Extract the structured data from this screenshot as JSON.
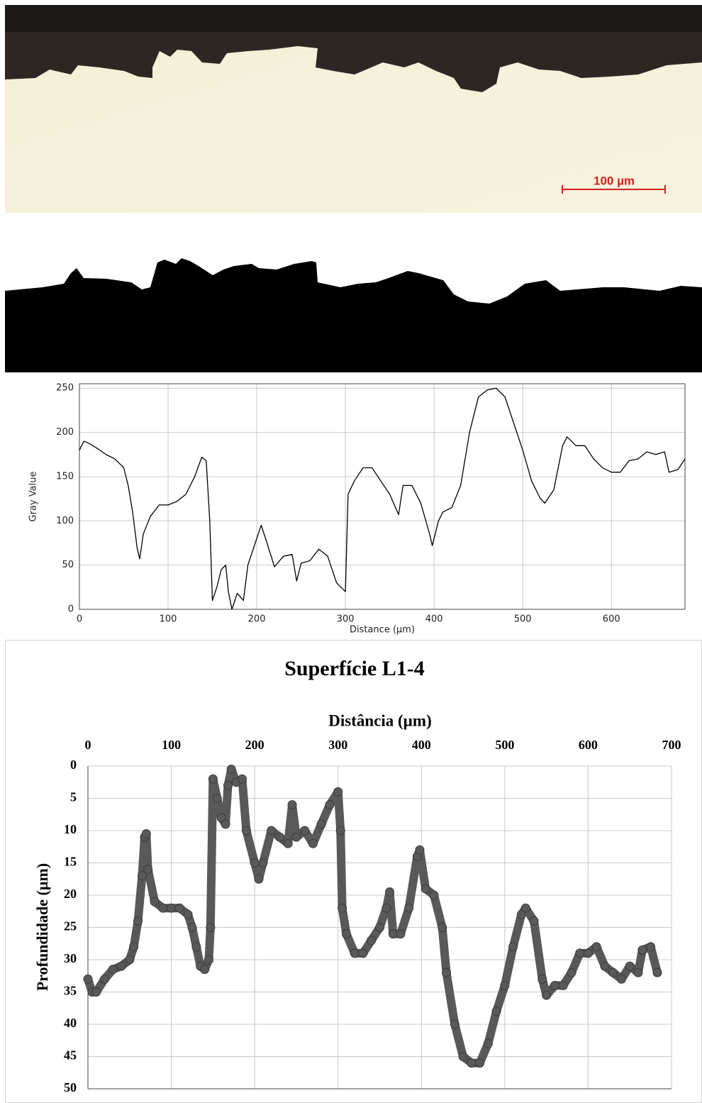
{
  "micrograph": {
    "scale_label": "100 µm"
  },
  "chart_data": [
    {
      "type": "line",
      "x_label": "Distance (µm)",
      "y_label": "Gray Value",
      "color": "#000000",
      "grid": true,
      "xlim": [
        0,
        683
      ],
      "xticks": [
        0,
        100,
        200,
        300,
        400,
        500,
        600
      ],
      "ylim": [
        0,
        255
      ],
      "yticks": [
        0,
        50,
        100,
        150,
        200,
        250
      ],
      "x": [
        0,
        5,
        10,
        20,
        30,
        40,
        50,
        55,
        60,
        65,
        68,
        72,
        80,
        90,
        100,
        110,
        120,
        130,
        138,
        143,
        147,
        150,
        155,
        160,
        165,
        168,
        172,
        178,
        185,
        190,
        200,
        205,
        210,
        220,
        230,
        240,
        245,
        250,
        260,
        270,
        280,
        290,
        300,
        303,
        310,
        320,
        330,
        340,
        350,
        360,
        365,
        375,
        385,
        395,
        398,
        405,
        410,
        420,
        430,
        440,
        450,
        460,
        470,
        480,
        490,
        500,
        510,
        520,
        525,
        535,
        545,
        550,
        560,
        570,
        580,
        590,
        600,
        610,
        620,
        630,
        640,
        650,
        660,
        665,
        675,
        683
      ],
      "values": [
        180,
        190,
        188,
        182,
        175,
        170,
        160,
        140,
        110,
        70,
        57,
        85,
        105,
        118,
        118,
        122,
        130,
        150,
        172,
        168,
        100,
        10,
        25,
        45,
        50,
        20,
        0,
        18,
        10,
        50,
        80,
        95,
        80,
        48,
        60,
        62,
        32,
        52,
        55,
        68,
        60,
        30,
        20,
        130,
        145,
        160,
        160,
        145,
        130,
        107,
        140,
        140,
        120,
        85,
        72,
        100,
        110,
        115,
        140,
        200,
        240,
        248,
        250,
        240,
        210,
        180,
        145,
        125,
        120,
        135,
        185,
        195,
        185,
        185,
        170,
        160,
        155,
        155,
        168,
        170,
        178,
        175,
        178,
        155,
        158,
        170
      ]
    },
    {
      "type": "line",
      "markers": true,
      "title": "Superfície L1-4",
      "x_label": "Distância (µm)",
      "y_label": "Profundidade (µm)",
      "color": "#595959",
      "grid": true,
      "x_axis_top": true,
      "y_reversed": true,
      "xlim": [
        0,
        700
      ],
      "xticks": [
        0,
        100,
        200,
        300,
        400,
        500,
        600,
        700
      ],
      "ylim": [
        0,
        50
      ],
      "yticks": [
        0,
        5,
        10,
        15,
        20,
        25,
        30,
        35,
        40,
        45,
        50
      ],
      "x": [
        0,
        5,
        10,
        20,
        30,
        40,
        50,
        55,
        60,
        65,
        68,
        70,
        72,
        80,
        90,
        100,
        110,
        120,
        125,
        130,
        135,
        140,
        145,
        147,
        150,
        155,
        160,
        165,
        168,
        172,
        178,
        185,
        190,
        200,
        205,
        210,
        220,
        230,
        240,
        245,
        250,
        260,
        270,
        280,
        290,
        300,
        303,
        305,
        310,
        320,
        330,
        340,
        350,
        358,
        362,
        366,
        375,
        385,
        395,
        398,
        405,
        415,
        425,
        430,
        440,
        450,
        460,
        470,
        480,
        490,
        500,
        510,
        520,
        525,
        535,
        545,
        550,
        560,
        570,
        580,
        590,
        600,
        610,
        620,
        630,
        640,
        650,
        660,
        665,
        675,
        683
      ],
      "values": [
        33,
        35,
        35,
        33,
        31.5,
        31,
        30,
        28,
        24,
        17,
        11,
        10.5,
        16,
        21,
        22,
        22,
        22,
        23,
        25,
        28,
        31,
        31.5,
        30,
        25,
        2,
        5,
        8,
        9,
        3,
        0.5,
        2.5,
        2,
        10,
        15,
        17.5,
        15,
        10,
        11,
        12,
        6,
        11,
        10,
        12,
        9,
        6,
        4,
        10,
        22,
        26,
        29,
        29,
        27,
        25,
        22,
        19.5,
        26,
        26,
        22,
        14,
        13,
        19,
        20,
        25,
        32,
        40,
        45,
        46,
        46,
        43,
        38,
        34,
        28,
        23,
        22,
        24,
        33,
        35.5,
        34,
        34,
        32,
        29,
        29,
        28,
        31,
        32,
        33,
        31,
        32,
        28.5,
        28,
        32
      ]
    }
  ]
}
